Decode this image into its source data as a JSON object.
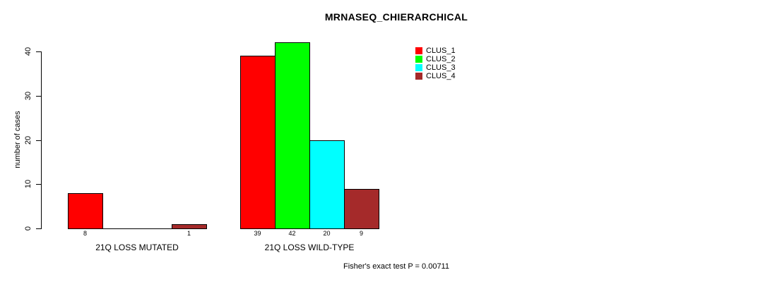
{
  "chart_data": {
    "type": "bar",
    "title": "MRNASEQ_CHIERARCHICAL",
    "xlabel": "",
    "ylabel": "number of cases",
    "ylim": [
      0,
      40
    ],
    "yticks": [
      0,
      10,
      20,
      30,
      40
    ],
    "grid": false,
    "legend_position": "top-right",
    "categories": [
      "21Q LOSS MUTATED",
      "21Q LOSS WILD-TYPE"
    ],
    "series": [
      {
        "name": "CLUS_1",
        "color": "#ff0000",
        "values": [
          8,
          39
        ]
      },
      {
        "name": "CLUS_2",
        "color": "#00ff00",
        "values": [
          0,
          42
        ]
      },
      {
        "name": "CLUS_3",
        "color": "#00ffff",
        "values": [
          0,
          20
        ]
      },
      {
        "name": "CLUS_4",
        "color": "#a52a2a",
        "values": [
          1,
          9
        ]
      }
    ],
    "bar_value_labels_shown": true,
    "annotation": "Fisher's exact test P = 0.00711"
  }
}
